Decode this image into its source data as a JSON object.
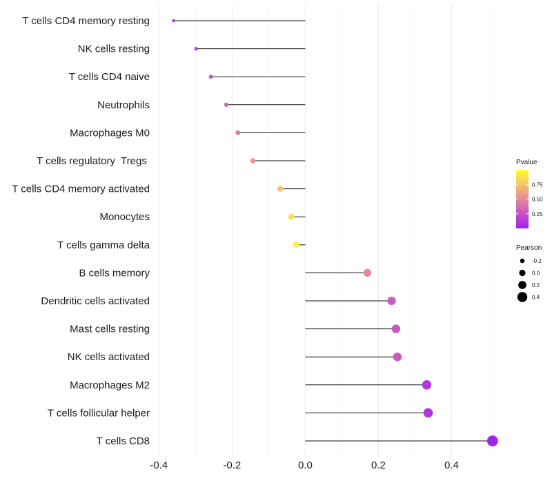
{
  "chart_data": {
    "type": "lollipop",
    "title": "",
    "xlabel": "",
    "ylabel": "",
    "xlim": [
      -0.41,
      0.55
    ],
    "xticks": [
      -0.4,
      -0.2,
      0.0,
      0.2,
      0.4
    ],
    "xtick_labels": [
      "-0.4",
      "-0.2",
      "0.0",
      "0.2",
      "0.4"
    ],
    "categories": [
      "T cells CD4 memory resting",
      "NK cells resting",
      "T cells CD4 naive",
      "Neutrophils",
      "Macrophages M0",
      "T cells regulatory  Tregs ",
      "T cells CD4 memory activated",
      "Monocytes",
      "T cells gamma delta",
      "B cells memory",
      "Dendritic cells activated",
      "Mast cells resting",
      "NK cells activated",
      "Macrophages M2",
      "T cells follicular helper",
      "T cells CD8"
    ],
    "pearson": [
      -0.36,
      -0.298,
      -0.258,
      -0.216,
      -0.184,
      -0.143,
      -0.068,
      -0.038,
      -0.025,
      0.17,
      0.236,
      0.248,
      0.252,
      0.332,
      0.336,
      0.512
    ],
    "pvalue": [
      0.08,
      0.15,
      0.25,
      0.35,
      0.4,
      0.55,
      0.75,
      0.85,
      0.95,
      0.5,
      0.3,
      0.28,
      0.28,
      0.12,
      0.1,
      0.02
    ],
    "color_scale": {
      "low": "#a020f0",
      "mid": "#e6899b",
      "high": "#ffff33"
    },
    "legend_pvalue": {
      "title": "Pvalue",
      "ticks": [
        0.75,
        0.5,
        0.25
      ],
      "tick_labels": [
        "0.75",
        "0.50",
        "0.25"
      ],
      "range": [
        0.0,
        1.0
      ]
    },
    "legend_pearson": {
      "title": "Pearson",
      "values": [
        -0.2,
        0.0,
        0.2,
        0.4
      ],
      "labels": [
        "-0.2",
        "0.0",
        "0.2",
        "0.4"
      ]
    }
  }
}
